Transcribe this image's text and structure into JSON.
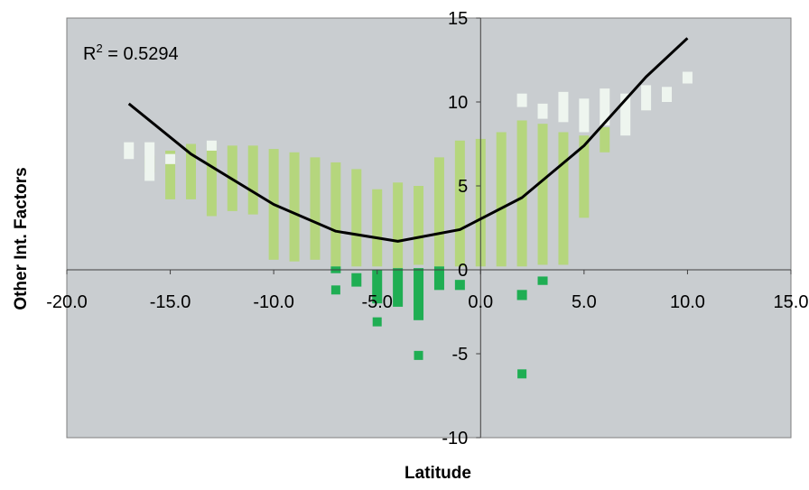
{
  "chart_data": {
    "type": "scatter",
    "title": "",
    "xlabel": "Latitude",
    "ylabel": "Other Int. Factors",
    "xlim": [
      -20,
      15
    ],
    "ylim": [
      -10,
      15
    ],
    "x_ticks": [
      "-20.0",
      "-15.0",
      "-10.0",
      "-5.0",
      "0.0",
      "5.0",
      "10.0",
      "15.0"
    ],
    "y_ticks": [
      "15",
      "10",
      "5",
      "0",
      "-5",
      "-10"
    ],
    "x_tick_values": [
      -20,
      -15,
      -10,
      -5,
      0,
      5,
      10,
      15
    ],
    "y_tick_values": [
      15,
      10,
      5,
      0,
      -5,
      -10
    ],
    "grid": false,
    "legend": "none",
    "annotation": {
      "prefix": "R",
      "superscript": "2",
      "value": " = 0.5294"
    },
    "trendline": {
      "type": "polynomial-2",
      "x_start": -17,
      "x_end": 10,
      "points": [
        [
          -17,
          9.9
        ],
        [
          -14,
          6.9
        ],
        [
          -10,
          3.9
        ],
        [
          -7,
          2.3
        ],
        [
          -4,
          1.7
        ],
        [
          -1,
          2.4
        ],
        [
          2,
          4.3
        ],
        [
          5,
          7.4
        ],
        [
          8,
          11.5
        ],
        [
          10,
          13.8
        ]
      ]
    },
    "colors": {
      "plot_bg": "#c9cdd0",
      "light_green": "#b5d67d",
      "pale": "#eef5ef",
      "dark_green": "#1fae53",
      "trend": "#000000"
    },
    "series": [
      {
        "name": "",
        "color": "light_green",
        "bars": [
          [
            -16,
            5.8,
            6.8
          ],
          [
            -15,
            4.2,
            7.1
          ],
          [
            -14,
            4.2,
            7.5
          ],
          [
            -13,
            3.2,
            7.5
          ],
          [
            -12,
            3.5,
            7.4
          ],
          [
            -11,
            3.3,
            7.4
          ],
          [
            -10,
            0.6,
            7.2
          ],
          [
            -9,
            0.5,
            7.0
          ],
          [
            -8,
            0.6,
            6.7
          ],
          [
            -7,
            0.2,
            6.4
          ],
          [
            -6,
            0.2,
            6.0
          ],
          [
            -5,
            0.2,
            4.8
          ],
          [
            -4,
            0.1,
            5.2
          ],
          [
            -3,
            0.3,
            5.0
          ],
          [
            -2,
            0.2,
            6.7
          ],
          [
            -1,
            0.2,
            7.7
          ],
          [
            0,
            0.2,
            7.8
          ],
          [
            1,
            0.2,
            8.2
          ],
          [
            2,
            0.2,
            8.9
          ],
          [
            3,
            0.3,
            8.7
          ],
          [
            4,
            0.3,
            8.2
          ],
          [
            5,
            3.1,
            8.0
          ],
          [
            6,
            7.0,
            8.5
          ]
        ]
      },
      {
        "name": "",
        "color": "pale",
        "bars": [
          [
            -17,
            6.6,
            7.6
          ],
          [
            -16,
            5.3,
            7.6
          ],
          [
            -15,
            6.3,
            6.9
          ],
          [
            -13,
            7.1,
            7.7
          ],
          [
            2,
            9.7,
            10.5
          ],
          [
            3,
            9.0,
            9.9
          ],
          [
            4,
            8.8,
            10.6
          ],
          [
            5,
            8.2,
            10.2
          ],
          [
            6,
            8.6,
            10.8
          ],
          [
            7,
            8.0,
            10.5
          ],
          [
            8,
            9.5,
            11.0
          ],
          [
            9,
            10.0,
            10.9
          ],
          [
            10,
            11.1,
            11.8
          ]
        ]
      },
      {
        "name": "",
        "color": "dark_green",
        "bars": [
          [
            -7,
            -0.2,
            0.2
          ],
          [
            -6,
            -1.0,
            -0.2
          ],
          [
            -5,
            -2.0,
            0.0
          ],
          [
            -4,
            -2.2,
            0.1
          ],
          [
            -3,
            -3.0,
            0.1
          ],
          [
            -2,
            -1.2,
            0.2
          ],
          [
            -1,
            -1.2,
            -0.6
          ],
          [
            2,
            -1.8,
            -1.2
          ],
          [
            3,
            -0.9,
            -0.4
          ]
        ],
        "points": [
          [
            -7,
            -1.2
          ],
          [
            -5,
            -3.1
          ],
          [
            -3,
            -5.1
          ],
          [
            2,
            -6.2
          ]
        ]
      }
    ]
  }
}
